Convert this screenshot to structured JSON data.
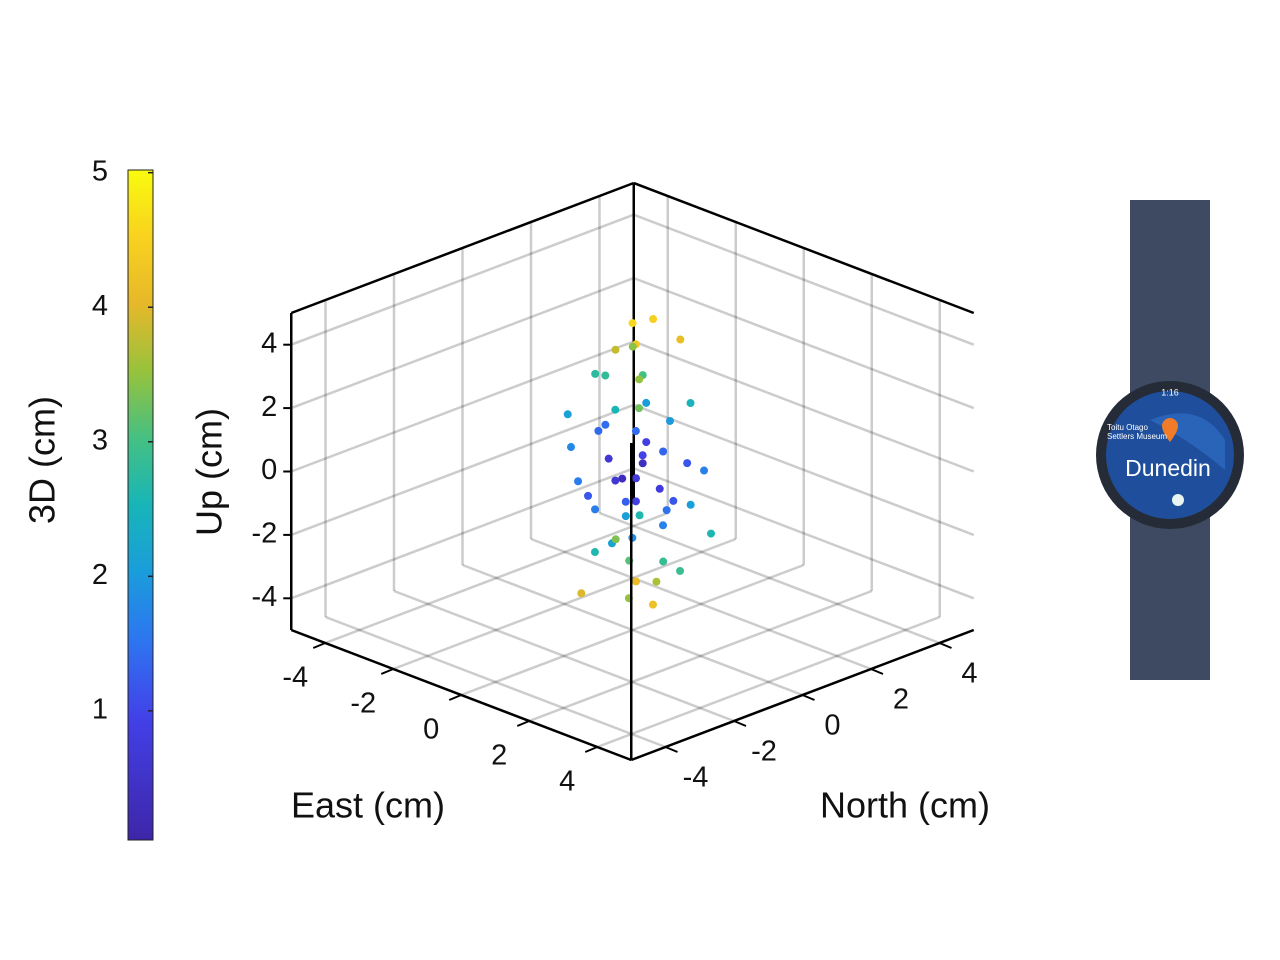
{
  "chart_data": {
    "type": "scatter3d",
    "xlabel": "East (cm)",
    "ylabel": "North (cm)",
    "zlabel": "Up (cm)",
    "colorbar_label": "3D (cm)",
    "xlim": [
      -5,
      5
    ],
    "ylim": [
      -5,
      5
    ],
    "zlim": [
      -5,
      5
    ],
    "xticks": [
      -4,
      -2,
      0,
      2,
      4
    ],
    "yticks": [
      -4,
      -2,
      0,
      2,
      4
    ],
    "zticks": [
      -4,
      -2,
      0,
      2,
      4
    ],
    "clim": [
      0.04,
      5.02
    ],
    "cticks": [
      1,
      2,
      3,
      4,
      5
    ],
    "colormap": "parula",
    "grid": true,
    "x": [
      0.2,
      -0.3,
      0.5,
      -0.6,
      0.4,
      0.8,
      -0.7,
      0.3,
      -0.5,
      1.0,
      -1.1,
      0.6,
      -0.2,
      0.1,
      -0.4,
      0.7,
      -0.3,
      0.2,
      -0.6,
      0.4,
      -0.1,
      0.9,
      -1.2,
      1.3,
      -0.9,
      0.0,
      0.1,
      -0.2,
      0.6,
      -0.8,
      0.5,
      1.5,
      -1.4,
      0.3,
      -0.5,
      1.1,
      -0.9,
      0.8,
      0.2,
      -0.4,
      0.0,
      -0.1,
      1.2,
      -1.3,
      0.5,
      -0.7,
      0.1,
      -0.6,
      0.7,
      1.6,
      -1.5,
      0.3,
      -0.2,
      0.9,
      -0.8
    ],
    "y": [
      0.1,
      0.4,
      -0.2,
      -0.4,
      0.6,
      0.3,
      0.5,
      -0.8,
      -0.6,
      0.2,
      0.3,
      1.0,
      -1.1,
      0.2,
      0.3,
      -0.5,
      -0.2,
      0.5,
      0.7,
      -0.3,
      0.1,
      0.8,
      -0.7,
      -0.4,
      1.1,
      -0.3,
      0.0,
      0.6,
      -0.6,
      0.0,
      0.4,
      0.6,
      -0.2,
      1.4,
      -1.3,
      1.2,
      0.9,
      -0.9,
      -0.1,
      0.2,
      0.4,
      -0.5,
      -1.0,
      0.8,
      0.9,
      -0.8,
      -0.6,
      -0.1,
      0.1,
      -0.2,
      0.4,
      0.3,
      0.8,
      0.0,
      -0.3
    ],
    "z": [
      0.3,
      -0.5,
      0.8,
      1.2,
      -1.3,
      1.8,
      -1.9,
      2.4,
      -2.5,
      -0.6,
      0.9,
      0.1,
      -0.4,
      3.0,
      -3.1,
      3.4,
      3.8,
      -3.6,
      -4.0,
      4.3,
      4.6,
      2.2,
      1.6,
      -1.0,
      -2.2,
      -0.1,
      -0.9,
      0.6,
      -1.6,
      2.7,
      -2.8,
      0.4,
      -0.8,
      -1.5,
      1.1,
      -2.0,
      3.2,
      -3.3,
      1.4,
      -1.2,
      2.0,
      -2.1,
      2.9,
      -3.0,
      4.0,
      -3.8,
      0.0,
      0.2,
      -0.3,
      -2.4,
      2.3,
      -4.2,
      4.4,
      1.0,
      -1.4
    ],
    "values": [
      0.37,
      0.71,
      0.96,
      1.4,
      1.49,
      1.99,
      2.09,
      2.55,
      2.62,
      1.18,
      1.45,
      1.17,
      1.19,
      3.01,
      3.14,
      3.51,
      3.82,
      3.64,
      4.1,
      4.33,
      4.6,
      2.51,
      2.12,
      1.69,
      2.62,
      0.32,
      0.91,
      0.87,
      1.81,
      2.82,
      2.87,
      1.66,
      1.62,
      2.07,
      1.77,
      2.58,
      3.44,
      3.51,
      1.42,
      1.28,
      2.04,
      2.16,
      3.29,
      3.37,
      4.13,
      3.95,
      0.61,
      0.64,
      0.77,
      2.89,
      2.77,
      4.22,
      4.48,
      1.35,
      1.64
    ]
  },
  "watch": {
    "time": "1:16",
    "labels": [
      "Toitu Otago",
      "Settlers Museum"
    ],
    "place": "Dunedin"
  }
}
